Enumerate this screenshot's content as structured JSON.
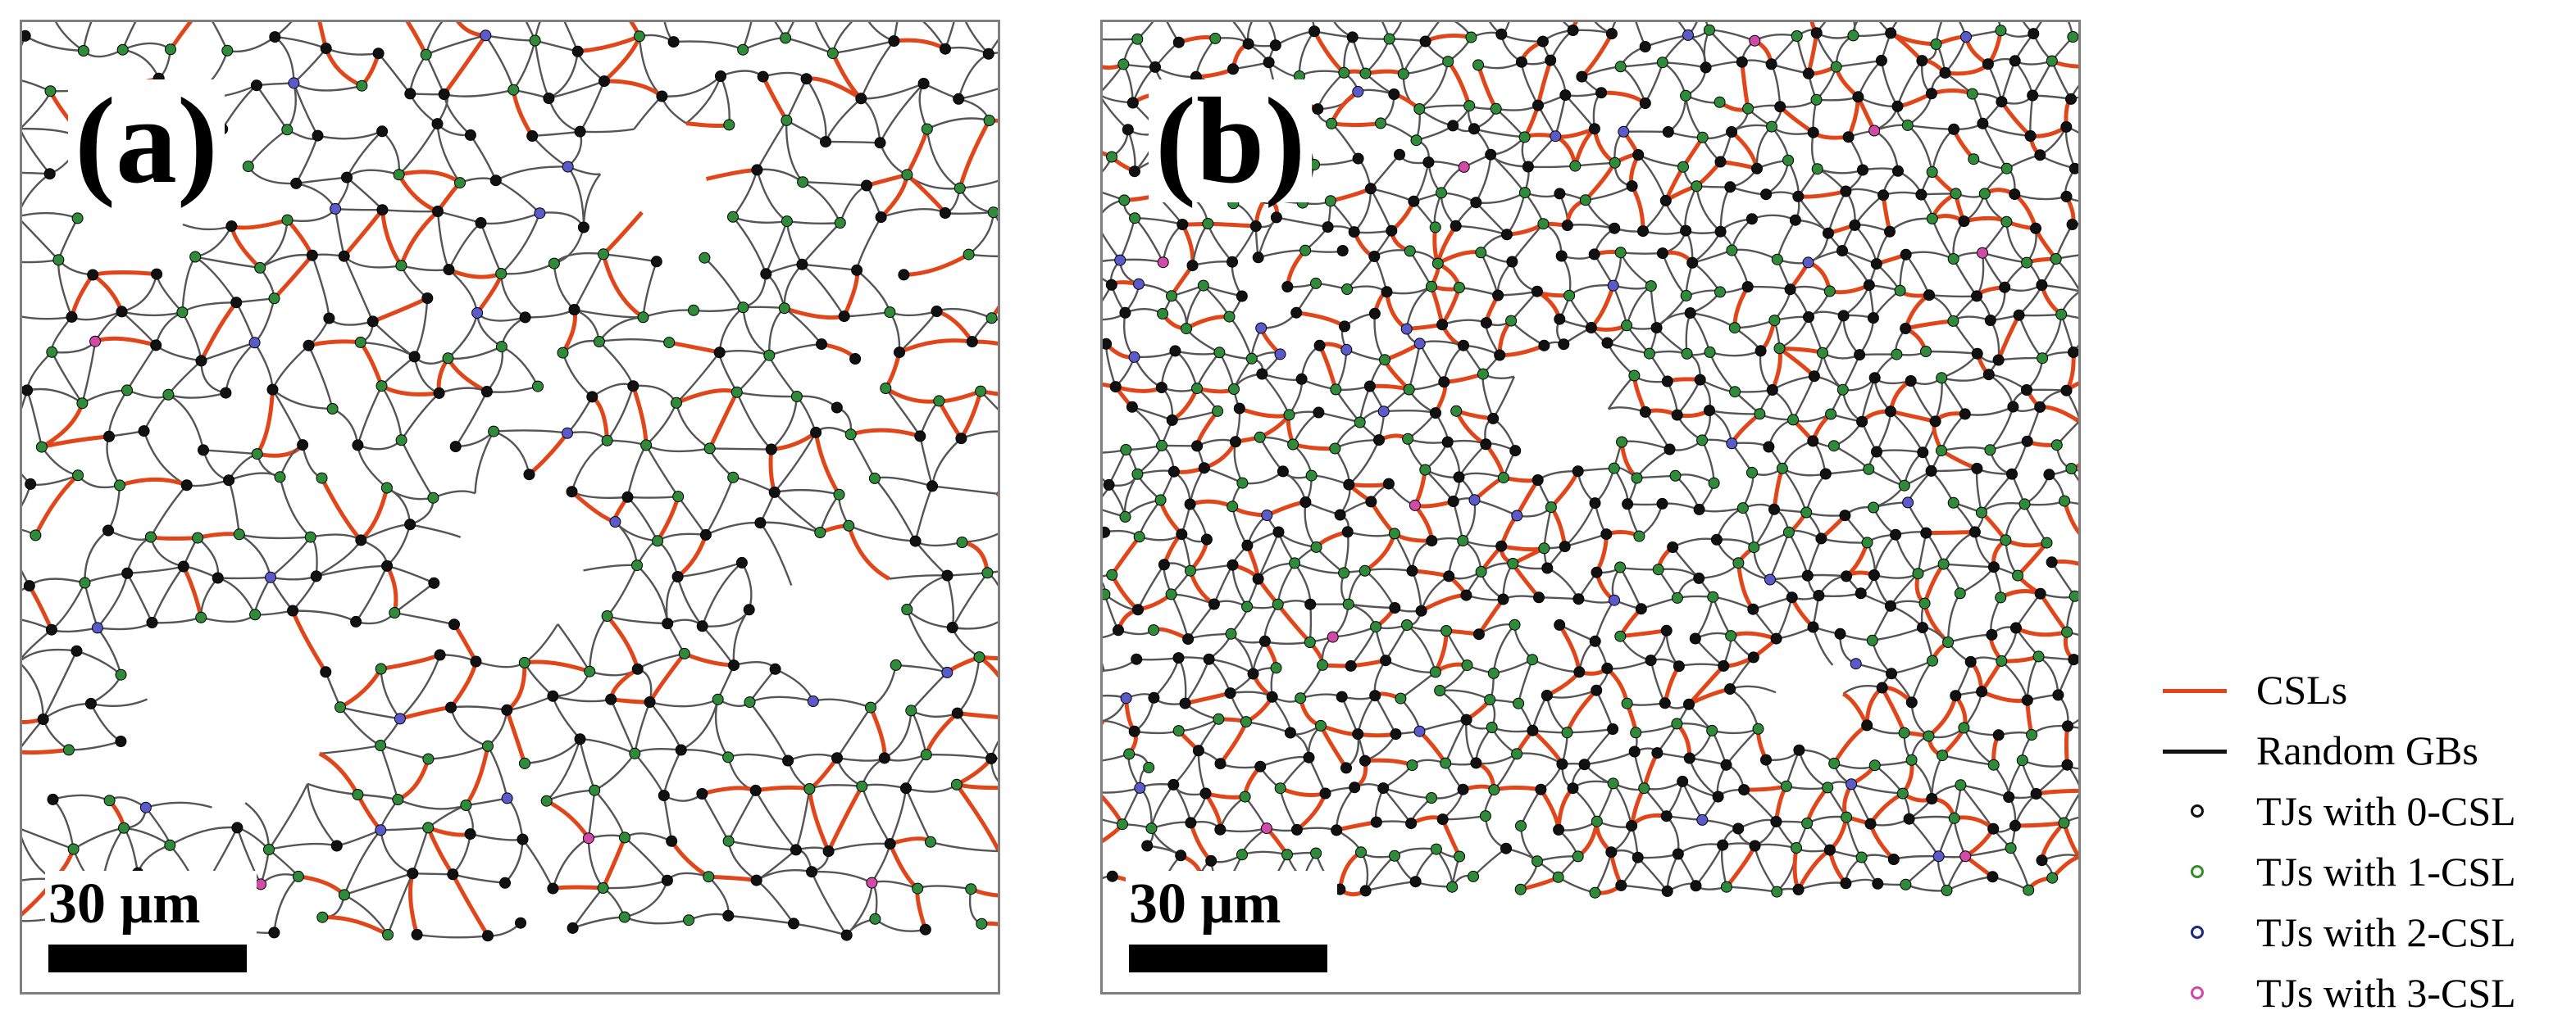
{
  "panels": [
    {
      "label": "(a)",
      "scale_text": "30 μm"
    },
    {
      "label": "(b)",
      "scale_text": "30 μm"
    }
  ],
  "legend": [
    {
      "symbol": "line",
      "color": "#e0461a",
      "label": "CSLs"
    },
    {
      "symbol": "line",
      "color": "#111111",
      "label": "Random GBs"
    },
    {
      "symbol": "dot",
      "color": "#111111",
      "label": "TJs with 0-CSL"
    },
    {
      "symbol": "dot",
      "color": "#3a8a2e",
      "label": "TJs with 1-CSL"
    },
    {
      "symbol": "dot",
      "color": "#1b2a7a",
      "label": "TJs with 2-CSL"
    },
    {
      "symbol": "dot",
      "color": "#d24aa8",
      "label": "TJs with 3-CSL"
    }
  ],
  "colors": {
    "csl": "#e0461a",
    "random_gb": "#555555",
    "tj_0csl": "#111111",
    "tj_1csl": "#2f8a3a",
    "tj_2csl": "#5a5ac8",
    "tj_3csl": "#d24aa8"
  }
}
